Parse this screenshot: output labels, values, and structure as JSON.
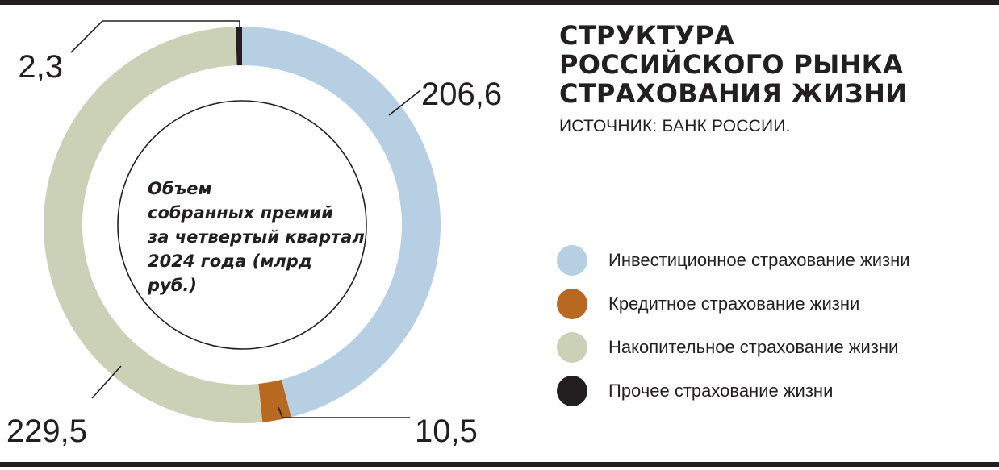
{
  "title_lines": [
    "СТРУКТУРА",
    "РОССИЙСКОГО РЫНКА",
    "СТРАХОВАНИЯ ЖИЗНИ"
  ],
  "source": "ИСТОЧНИК: БАНК РОССИИ.",
  "center_text": "Объем\nсобранных премий\nза четвертый квартал\n2024 года (млрд руб.)",
  "chart_data": {
    "type": "pie",
    "title": "СТРУКТУРА РОССИЙСКОГО РЫНКА СТРАХОВАНИЯ ЖИЗНИ",
    "unit": "млрд руб.",
    "start_angle_deg": 0,
    "direction": "clockwise",
    "slices": [
      {
        "label": "Инвестиционное страхование жизни",
        "value": 206.6,
        "display": "206,6",
        "color": "#b7cfe3"
      },
      {
        "label": "Кредитное страхование жизни",
        "value": 10.5,
        "display": "10,5",
        "color": "#b8681f"
      },
      {
        "label": "Накопительное страхование жизни",
        "value": 229.5,
        "display": "229,5",
        "color": "#cbd1b6"
      },
      {
        "label": "Прочее страхование жизни",
        "value": 2.3,
        "display": "2,3",
        "color": "#231f20"
      }
    ],
    "legend_position": "right"
  }
}
